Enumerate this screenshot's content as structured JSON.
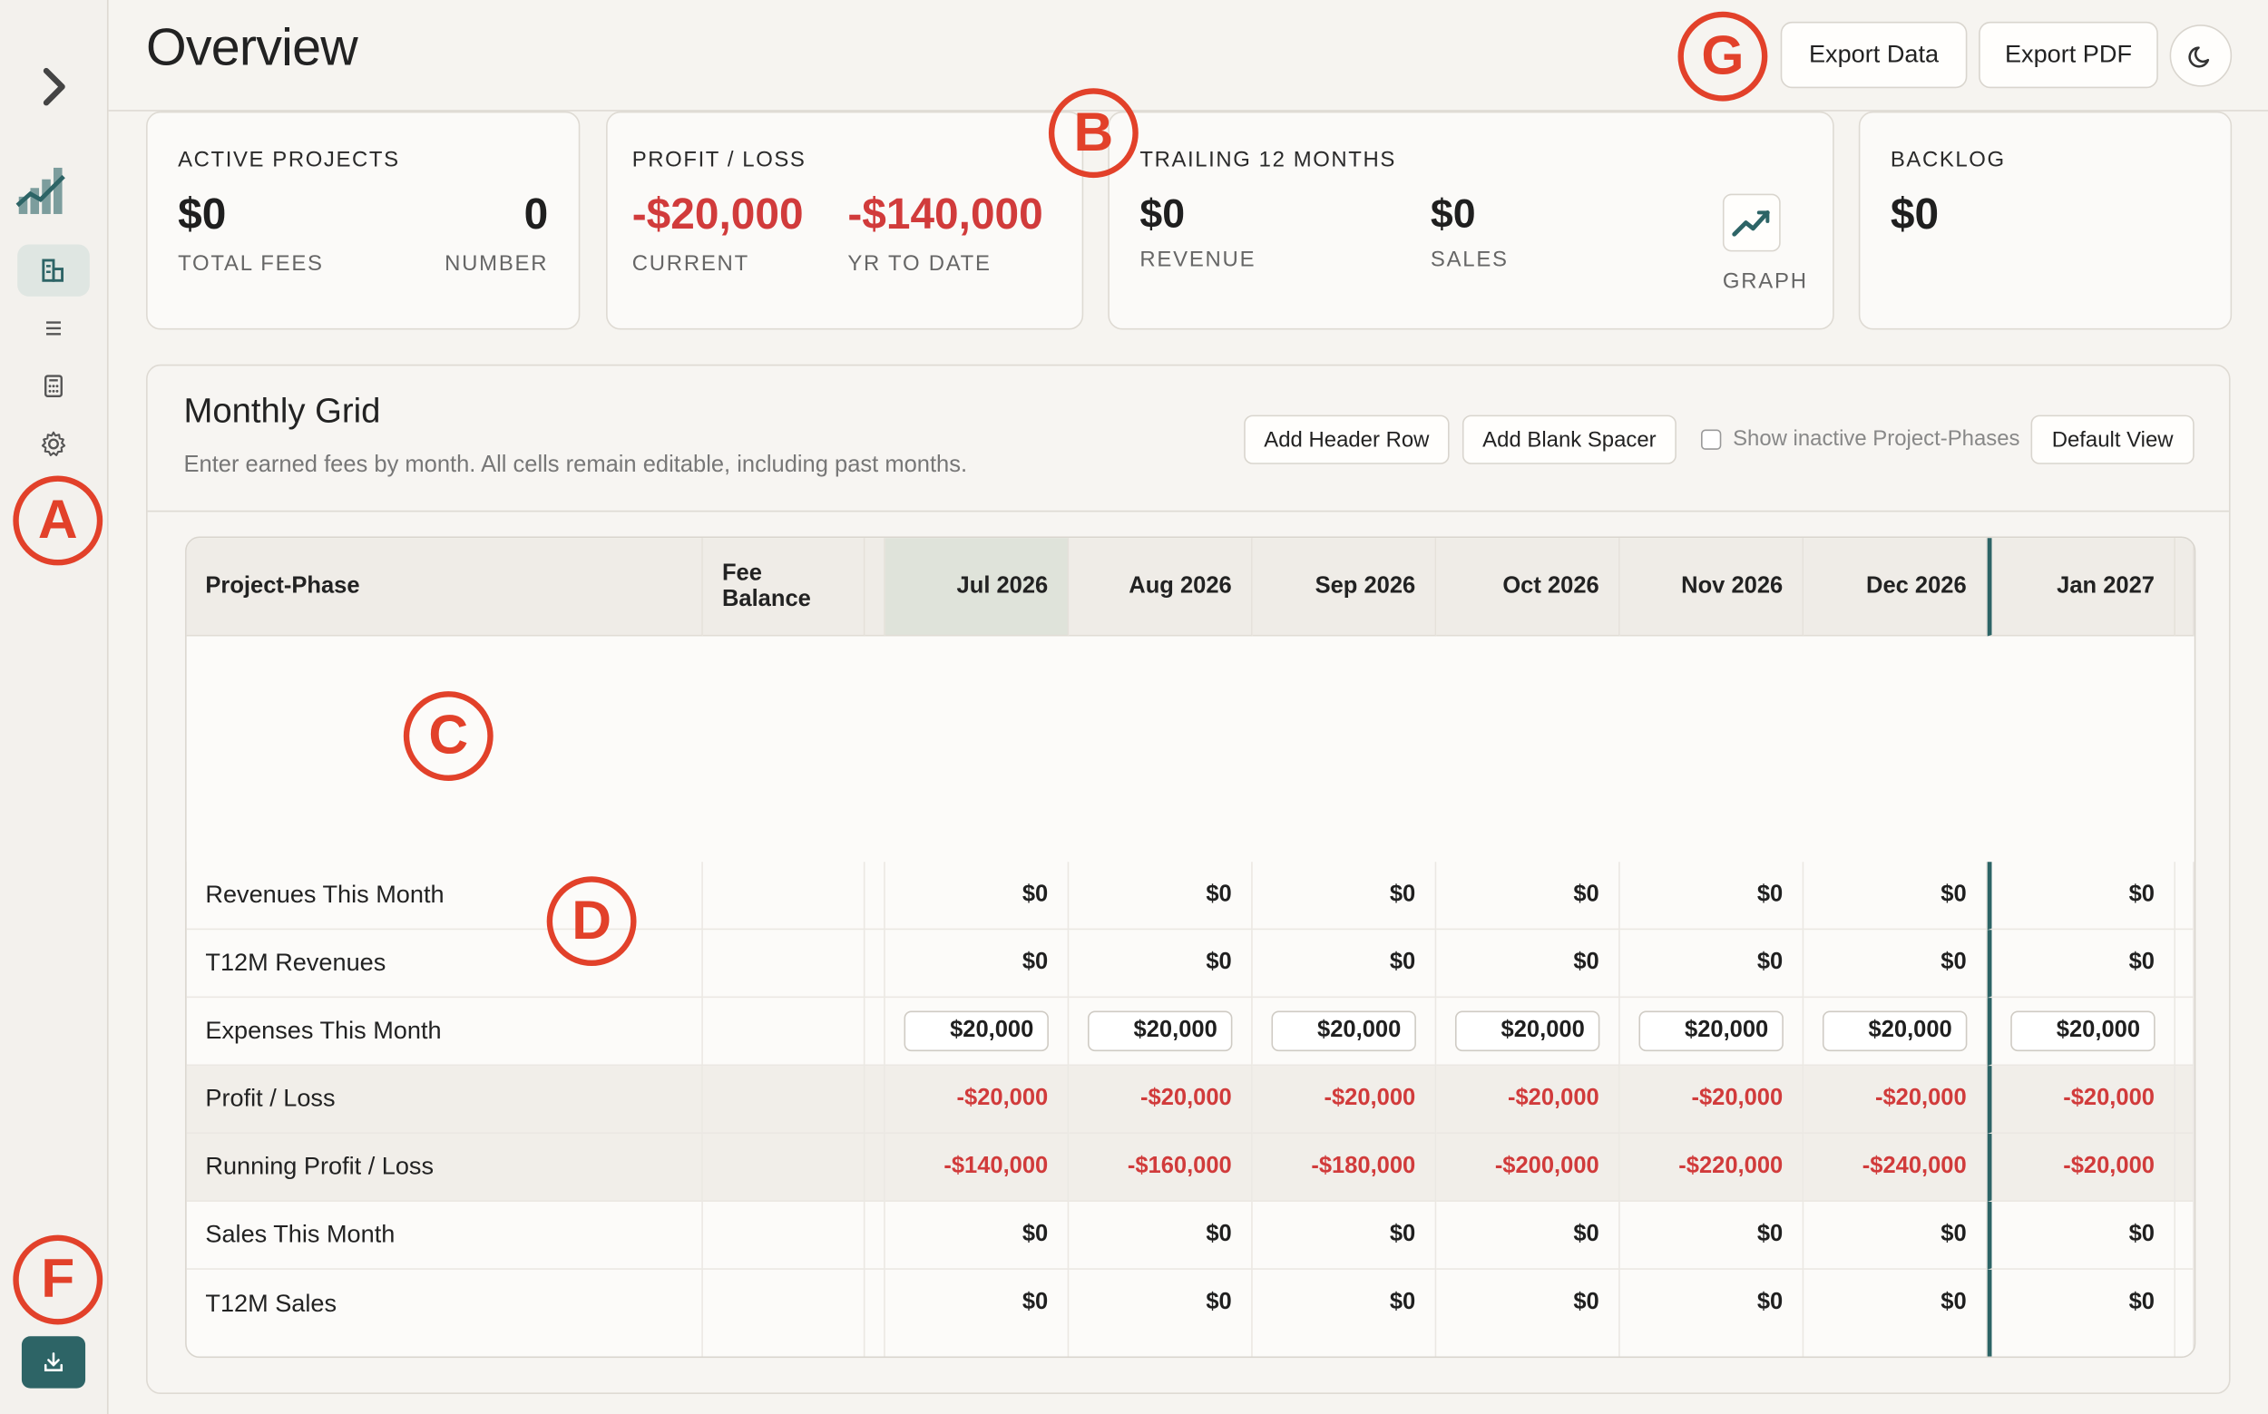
{
  "page": {
    "title": "Overview"
  },
  "header": {
    "export_data": "Export Data",
    "export_pdf": "Export PDF",
    "theme_toggle_icon": "moon-icon"
  },
  "sidebar": {
    "items": [
      {
        "icon": "dashboard-icon",
        "active": true
      },
      {
        "icon": "list-icon",
        "active": false
      },
      {
        "icon": "calculator-icon",
        "active": false
      },
      {
        "icon": "gear-icon",
        "active": false
      }
    ],
    "export_icon": "download-icon"
  },
  "markers": {
    "a": "A",
    "b": "B",
    "c": "C",
    "d": "D",
    "f": "F",
    "g": "G"
  },
  "cards": {
    "active_projects": {
      "title": "ACTIVE PROJECTS",
      "value1": "$0",
      "label1": "TOTAL FEES",
      "value2": "0",
      "label2": "NUMBER"
    },
    "profit_loss": {
      "title": "PROFIT / LOSS",
      "value1": "-$20,000",
      "label1": "CURRENT",
      "value2": "-$140,000",
      "label2": "YR TO DATE"
    },
    "trailing": {
      "title": "TRAILING 12 MONTHS",
      "value1": "$0",
      "label1": "REVENUE",
      "value2": "$0",
      "label2": "SALES",
      "graph_label": "GRAPH"
    },
    "backlog": {
      "title": "BACKLOG",
      "value1": "$0"
    }
  },
  "grid": {
    "title": "Monthly Grid",
    "subtitle": "Enter earned fees by month. All cells remain editable, including past months.",
    "buttons": {
      "add_header_row": "Add Header Row",
      "add_blank_spacer": "Add Blank Spacer",
      "default_view": "Default View"
    },
    "show_inactive": "Show inactive Project-Phases",
    "columns": {
      "project_phase": "Project-Phase",
      "fee_balance_1": "Fee",
      "fee_balance_2": "Balance"
    },
    "months": [
      "Jul 2026",
      "Aug 2026",
      "Sep 2026",
      "Oct 2026",
      "Nov 2026",
      "Dec 2026",
      "Jan 2027"
    ],
    "rows": [
      {
        "label": "Revenues This Month",
        "values": [
          "$0",
          "$0",
          "$0",
          "$0",
          "$0",
          "$0",
          "$0"
        ]
      },
      {
        "label": "T12M Revenues",
        "values": [
          "$0",
          "$0",
          "$0",
          "$0",
          "$0",
          "$0",
          "$0"
        ]
      },
      {
        "label": "Expenses This Month",
        "values": [
          "$20,000",
          "$20,000",
          "$20,000",
          "$20,000",
          "$20,000",
          "$20,000",
          "$20,000"
        ]
      },
      {
        "label": "Profit / Loss",
        "values": [
          "-$20,000",
          "-$20,000",
          "-$20,000",
          "-$20,000",
          "-$20,000",
          "-$20,000",
          "-$20,000"
        ]
      },
      {
        "label": "Running Profit / Loss",
        "values": [
          "-$140,000",
          "-$160,000",
          "-$180,000",
          "-$200,000",
          "-$220,000",
          "-$240,000",
          "-$20,000"
        ]
      },
      {
        "label": "Sales This Month",
        "values": [
          "$0",
          "$0",
          "$0",
          "$0",
          "$0",
          "$0",
          "$0"
        ]
      },
      {
        "label": "T12M Sales",
        "values": [
          "$0",
          "$0",
          "$0",
          "$0",
          "$0",
          "$0",
          "$0"
        ]
      }
    ]
  },
  "colors": {
    "accent": "#2d6466",
    "negative": "#d13b3b",
    "marker": "#e2412a"
  }
}
